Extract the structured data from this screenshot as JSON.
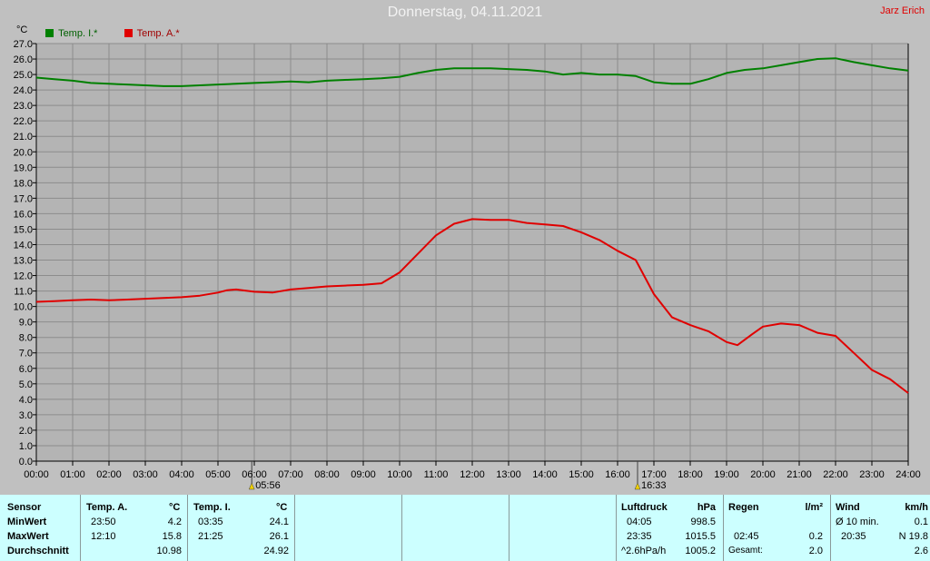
{
  "title": "Donnerstag, 04.11.2021",
  "author": "Jarz Erich",
  "unit_label": "°C",
  "colors": {
    "background": "#c0c0c0",
    "plot": "#b4b4b4",
    "inside": "#008000",
    "outside": "#e00000",
    "panel": "#ccffff",
    "author": "#e00000"
  },
  "chart_data": {
    "type": "line",
    "title": "Donnerstag, 04.11.2021",
    "ylabel": "°C",
    "ylim": [
      0,
      27
    ],
    "xlim_hours": [
      0,
      24
    ],
    "grid": true,
    "legend_placement": "top-left",
    "y_ticks": [
      "0.0",
      "1.0",
      "2.0",
      "3.0",
      "4.0",
      "5.0",
      "6.0",
      "7.0",
      "8.0",
      "9.0",
      "10.0",
      "11.0",
      "12.0",
      "13.0",
      "14.0",
      "15.0",
      "16.0",
      "17.0",
      "18.0",
      "19.0",
      "20.0",
      "21.0",
      "22.0",
      "23.0",
      "24.0",
      "25.0",
      "26.0",
      "27.0"
    ],
    "x_ticks": [
      "00:00",
      "01:00",
      "02:00",
      "03:00",
      "04:00",
      "05:00",
      "06:00",
      "07:00",
      "08:00",
      "09:00",
      "10:00",
      "11:00",
      "12:00",
      "13:00",
      "14:00",
      "15:00",
      "16:00",
      "17:00",
      "18:00",
      "19:00",
      "20:00",
      "21:00",
      "22:00",
      "23:00",
      "24:00"
    ],
    "sun_markers": [
      {
        "hour": 5.93,
        "label": "05:56"
      },
      {
        "hour": 16.55,
        "label": "16:33"
      }
    ],
    "series": [
      {
        "name": "Temp. I.*",
        "color": "#008000",
        "x": [
          0,
          0.5,
          1,
          1.5,
          2,
          2.5,
          3,
          3.5,
          4,
          4.5,
          5,
          5.5,
          6,
          6.5,
          7,
          7.5,
          8,
          8.5,
          9,
          9.5,
          10,
          10.5,
          11,
          11.5,
          12,
          12.5,
          13,
          13.5,
          14,
          14.5,
          15,
          15.5,
          16,
          16.5,
          17,
          17.5,
          18,
          18.5,
          19,
          19.5,
          20,
          20.5,
          21,
          21.5,
          22,
          22.5,
          23,
          23.5,
          24
        ],
        "values": [
          24.8,
          24.7,
          24.6,
          24.45,
          24.4,
          24.35,
          24.3,
          24.25,
          24.25,
          24.3,
          24.35,
          24.4,
          24.45,
          24.5,
          24.55,
          24.5,
          24.6,
          24.65,
          24.7,
          24.75,
          24.85,
          25.1,
          25.3,
          25.4,
          25.4,
          25.4,
          25.35,
          25.3,
          25.2,
          25.0,
          25.1,
          25.0,
          25.0,
          24.9,
          24.5,
          24.4,
          24.4,
          24.7,
          25.1,
          25.3,
          25.4,
          25.6,
          25.8,
          26.0,
          26.05,
          25.8,
          25.6,
          25.4,
          25.25
        ]
      },
      {
        "name": "Temp. A.*",
        "color": "#e00000",
        "x": [
          0,
          0.5,
          1,
          1.5,
          2,
          2.5,
          3,
          3.5,
          4,
          4.5,
          5,
          5.25,
          5.5,
          6,
          6.5,
          7,
          7.5,
          8,
          8.5,
          9,
          9.5,
          10,
          10.5,
          11,
          11.5,
          12,
          12.5,
          13,
          13.5,
          14,
          14.5,
          15,
          15.5,
          16,
          16.5,
          17,
          17.5,
          18,
          18.5,
          19,
          19.3,
          19.7,
          20,
          20.5,
          21,
          21.5,
          22,
          22.5,
          23,
          23.5,
          24
        ],
        "values": [
          10.3,
          10.35,
          10.4,
          10.45,
          10.4,
          10.45,
          10.5,
          10.55,
          10.6,
          10.7,
          10.9,
          11.05,
          11.1,
          10.95,
          10.9,
          11.1,
          11.2,
          11.3,
          11.35,
          11.4,
          11.5,
          12.2,
          13.4,
          14.6,
          15.35,
          15.65,
          15.6,
          15.6,
          15.4,
          15.3,
          15.2,
          14.8,
          14.3,
          13.6,
          13.0,
          10.8,
          9.3,
          8.8,
          8.4,
          7.7,
          7.5,
          8.2,
          8.7,
          8.9,
          8.8,
          8.3,
          8.1,
          7.0,
          5.9,
          5.3,
          4.4
        ]
      }
    ]
  },
  "stats": {
    "sensor": {
      "label": "Sensor",
      "rows": [
        "MinWert",
        "MaxWert",
        "Durchschnitt"
      ]
    },
    "temp_a": {
      "label": "Temp. A.",
      "unit": "°C",
      "min_time": "23:50",
      "min": "4.2",
      "max_time": "12:10",
      "max": "15.8",
      "avg": "10.98"
    },
    "temp_i": {
      "label": "Temp. I.",
      "unit": "°C",
      "min_time": "03:35",
      "min": "24.1",
      "max_time": "21:25",
      "max": "26.1",
      "avg": "24.92"
    },
    "luftdruck": {
      "label": "Luftdruck",
      "unit": "hPa",
      "min_time": "04:05",
      "min": "998.5",
      "max_time": "23:35",
      "max": "1015.5",
      "trend": "^2.6hPa/h",
      "trend_val": "1005.2"
    },
    "regen": {
      "label": "Regen",
      "unit": "l/m²",
      "time": "02:45",
      "val": "0.2",
      "total_label": "Gesamt:",
      "total": "2.0"
    },
    "wind": {
      "label": "Wind",
      "unit": "km/h",
      "avg_label": "Ø 10 min.",
      "avg": "0.1",
      "gust_time": "20:35",
      "gust": "N 19.8",
      "extra": "2.6"
    }
  }
}
